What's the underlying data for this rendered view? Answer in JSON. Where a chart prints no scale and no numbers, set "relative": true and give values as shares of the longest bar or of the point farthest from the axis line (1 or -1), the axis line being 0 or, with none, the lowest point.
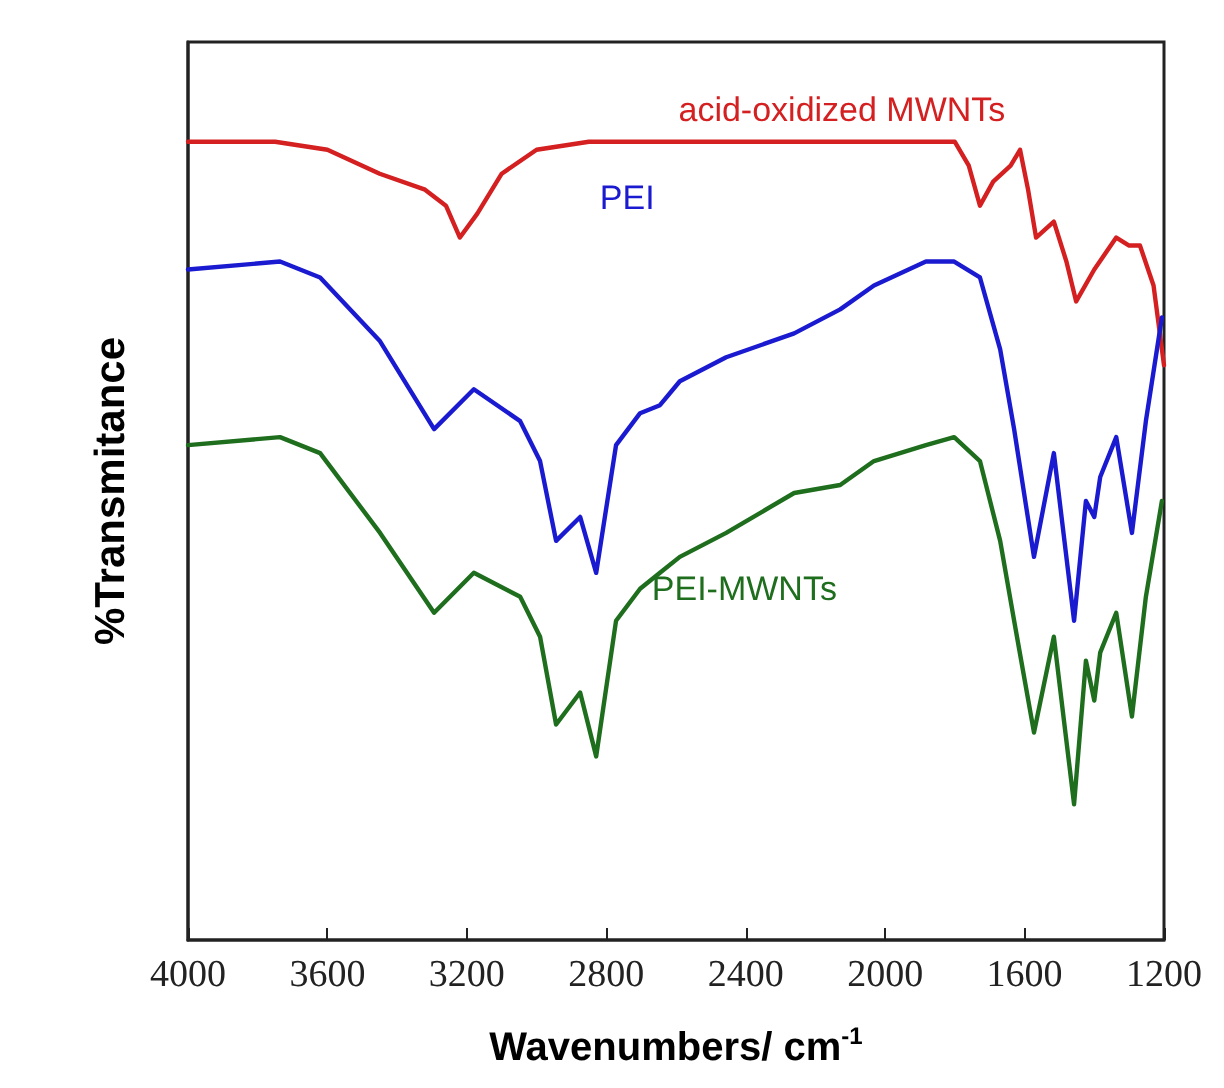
{
  "chart_data": {
    "type": "line",
    "relative": true,
    "xlabel": "Wavenumbers/ cm$^{-1}$",
    "ylabel": "%Transmitance",
    "xlim": [
      4000,
      1200
    ],
    "xticks": [
      4000,
      3600,
      3200,
      2800,
      2400,
      2000,
      1600,
      1200
    ],
    "tick_labels": "x",
    "grid": false,
    "legend": false,
    "marker": "none",
    "line_style": "solid",
    "series": [
      {
        "name": "acid-oxidized MWNTs",
        "color": "#d42020",
        "x": [
          4000,
          3750,
          3600,
          3450,
          3320,
          3260,
          3220,
          3170,
          3100,
          3000,
          2850,
          2400,
          2000,
          1800,
          1760,
          1728,
          1690,
          1640,
          1613,
          1590,
          1567,
          1516,
          1480,
          1452,
          1400,
          1337,
          1300,
          1269,
          1230,
          1200
        ],
        "values": [
          1.0,
          1.0,
          0.99,
          0.96,
          0.94,
          0.92,
          0.88,
          0.91,
          0.96,
          0.99,
          1.0,
          1.0,
          1.0,
          1.0,
          0.97,
          0.92,
          0.95,
          0.97,
          0.99,
          0.94,
          0.88,
          0.9,
          0.85,
          0.8,
          0.84,
          0.88,
          0.87,
          0.87,
          0.82,
          0.72
        ]
      },
      {
        "name": "PEI",
        "color": "#1a1ad0",
        "x": [
          4000,
          3736,
          3621,
          3449,
          3294,
          3180,
          3047,
          2990,
          2944,
          2875,
          2829,
          2772,
          2703,
          2646,
          2589,
          2456,
          2261,
          2129,
          2032,
          1883,
          1802,
          1728,
          1670,
          1630,
          1573,
          1516,
          1458,
          1424,
          1400,
          1383,
          1337,
          1292,
          1252,
          1206
        ],
        "values": [
          0.84,
          0.85,
          0.83,
          0.75,
          0.64,
          0.69,
          0.65,
          0.6,
          0.5,
          0.53,
          0.46,
          0.62,
          0.66,
          0.67,
          0.7,
          0.73,
          0.76,
          0.79,
          0.82,
          0.85,
          0.85,
          0.83,
          0.74,
          0.64,
          0.48,
          0.61,
          0.4,
          0.55,
          0.53,
          0.58,
          0.63,
          0.51,
          0.65,
          0.78
        ]
      },
      {
        "name": "PEI-MWNTs",
        "color": "#1e6e1e",
        "x": [
          4000,
          3736,
          3621,
          3449,
          3294,
          3180,
          3047,
          2990,
          2944,
          2875,
          2829,
          2772,
          2703,
          2646,
          2589,
          2456,
          2261,
          2129,
          2032,
          1883,
          1802,
          1728,
          1670,
          1630,
          1573,
          1516,
          1458,
          1424,
          1400,
          1383,
          1337,
          1292,
          1252,
          1206
        ],
        "values": [
          0.62,
          0.63,
          0.61,
          0.51,
          0.41,
          0.46,
          0.43,
          0.38,
          0.27,
          0.31,
          0.23,
          0.4,
          0.44,
          0.46,
          0.48,
          0.51,
          0.56,
          0.57,
          0.6,
          0.62,
          0.63,
          0.6,
          0.5,
          0.4,
          0.26,
          0.38,
          0.17,
          0.35,
          0.3,
          0.36,
          0.41,
          0.28,
          0.43,
          0.55
        ]
      }
    ]
  }
}
